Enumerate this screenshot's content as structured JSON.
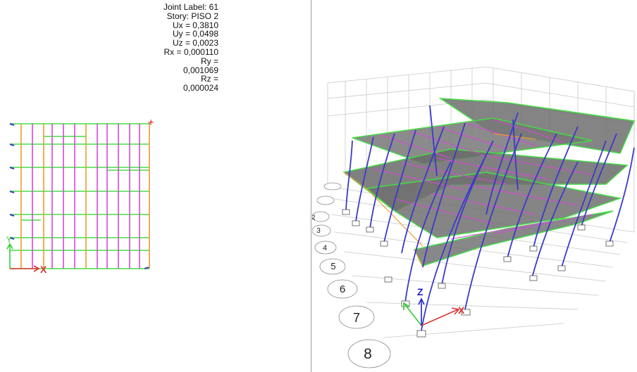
{
  "joint_info": {
    "joint_label": "Joint Label: 61",
    "story": "Story: PISO 2",
    "ux": "Ux =  0,3810",
    "uy": "Uy =  0,0498",
    "uz": "Uz =  0,0023",
    "rx": "Rx =  0,000110",
    "ry_label": "Ry =",
    "ry_value": "0,001069",
    "rz_label": "Rz =",
    "rz_value": "0,000024"
  },
  "plan_view": {
    "axis_x": "X",
    "axis_y": "Y"
  },
  "view_3d": {
    "axis_x": "X",
    "axis_y": "Y",
    "axis_z": "Z",
    "grid_bubbles": [
      "2",
      "3",
      "4",
      "5",
      "6",
      "7",
      "8"
    ]
  },
  "colors": {
    "beam_green": "#44dd44",
    "beam_magenta": "#dd44dd",
    "column_orange": "#ee9933",
    "column_blue": "#3a3acc",
    "axis_red": "#dd3333",
    "axis_green": "#33cc33",
    "axis_blue": "#2222cc",
    "slab_gray": "#7a7a7a",
    "grid_line": "#c8c8c8",
    "divider": "#9a9a9a"
  }
}
